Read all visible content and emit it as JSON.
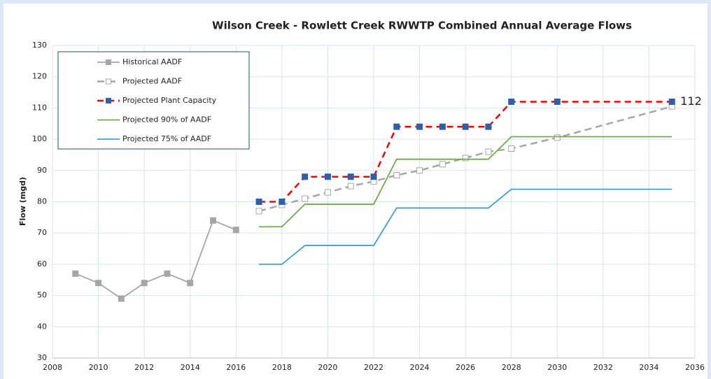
{
  "chart_data": {
    "type": "line",
    "title": "Wilson Creek - Rowlett Creek RWWTP Combined Annual Average Flows",
    "y_label": "Flow (mgd)",
    "xlim": [
      2008,
      2036
    ],
    "xticks": [
      2008,
      2010,
      2012,
      2014,
      2016,
      2018,
      2020,
      2022,
      2024,
      2026,
      2028,
      2030,
      2032,
      2034,
      2036
    ],
    "ylim": [
      30,
      130
    ],
    "yticks": [
      30,
      40,
      50,
      60,
      70,
      80,
      90,
      100,
      110,
      120,
      130
    ],
    "grid": true,
    "legend": "upper left",
    "series": [
      {
        "name": "Historical AADF",
        "color": "#a6a6a6",
        "dash": "solid",
        "marker": "filled-square",
        "marker_color": "#a6a6a6",
        "x": [
          2009,
          2010,
          2011,
          2012,
          2013,
          2014,
          2015,
          2016
        ],
        "values": [
          57,
          54,
          49,
          54,
          57,
          54,
          74,
          71
        ]
      },
      {
        "name": "Projected AADF",
        "color": "#a6a6a6",
        "dash": "dashed",
        "marker": "hollow-square",
        "marker_color": "#a6a6a6",
        "x": [
          2017,
          2018,
          2019,
          2020,
          2021,
          2022,
          2023,
          2024,
          2025,
          2026,
          2027,
          2028,
          2030,
          2035
        ],
        "values": [
          77,
          79,
          81,
          83,
          85,
          86.5,
          88.5,
          90,
          92,
          94,
          96,
          97,
          100.5,
          110.5
        ]
      },
      {
        "name": "Projected Plant Capacity",
        "color": "#ff0000",
        "dash": "dashed",
        "marker": "filled-square",
        "marker_color": "#2e5fa8",
        "data_label": "last",
        "x": [
          2017,
          2018,
          2019,
          2020,
          2021,
          2022,
          2023,
          2024,
          2025,
          2026,
          2027,
          2028,
          2030,
          2035
        ],
        "values": [
          80,
          80,
          88,
          88,
          88,
          88,
          104,
          104,
          104,
          104,
          104,
          112,
          112,
          112
        ]
      },
      {
        "name": "Projected 90% of AADF",
        "color": "#70ad47",
        "dash": "solid",
        "marker": "none",
        "x": [
          2017,
          2018,
          2019,
          2022,
          2023,
          2027,
          2028,
          2035
        ],
        "values": [
          72,
          72,
          79.2,
          79.2,
          93.6,
          93.6,
          100.8,
          100.8
        ]
      },
      {
        "name": "Projected 75% of AADF",
        "color": "#3fa0d5",
        "dash": "solid",
        "marker": "none",
        "x": [
          2017,
          2018,
          2019,
          2022,
          2023,
          2027,
          2028,
          2035
        ],
        "values": [
          60,
          60,
          66,
          66,
          78,
          78,
          84,
          84
        ]
      }
    ]
  }
}
